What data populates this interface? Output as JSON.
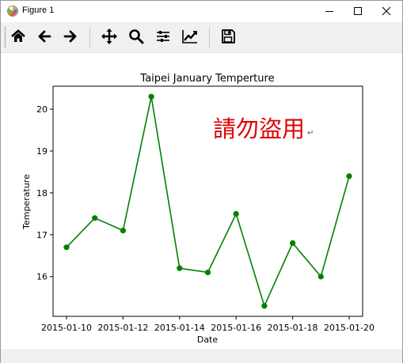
{
  "window": {
    "title": "Figure 1",
    "controls": [
      "minimize",
      "maximize",
      "close"
    ]
  },
  "toolbar": {
    "tools": [
      {
        "name": "home-icon",
        "tip": "Reset original view"
      },
      {
        "name": "back-arrow-icon",
        "tip": "Back"
      },
      {
        "name": "forward-arrow-icon",
        "tip": "Forward"
      },
      {
        "name": "pan-icon",
        "tip": "Pan"
      },
      {
        "name": "zoom-icon",
        "tip": "Zoom"
      },
      {
        "name": "subplots-icon",
        "tip": "Configure subplots"
      },
      {
        "name": "edit-curve-icon",
        "tip": "Edit axis, curve and image parameters"
      },
      {
        "name": "save-icon",
        "tip": "Save the figure"
      }
    ]
  },
  "watermark": "請勿盜用",
  "watermark_mark": "↵",
  "chart_data": {
    "type": "line",
    "title": "Taipei January Temperture",
    "xlabel": "Date",
    "ylabel": "Temperature",
    "x": [
      "2015-01-10",
      "2015-01-11",
      "2015-01-12",
      "2015-01-13",
      "2015-01-14",
      "2015-01-15",
      "2015-01-16",
      "2015-01-17",
      "2015-01-18",
      "2015-01-19",
      "2015-01-20"
    ],
    "series": [
      {
        "values": [
          16.7,
          17.4,
          17.1,
          20.3,
          16.2,
          16.1,
          17.5,
          15.3,
          16.8,
          16.0,
          18.4
        ]
      }
    ],
    "xticks": [
      "2015-01-10",
      "2015-01-12",
      "2015-01-14",
      "2015-01-16",
      "2015-01-18",
      "2015-01-20"
    ],
    "yticks": [
      16,
      17,
      18,
      19,
      20
    ],
    "ylim": [
      15.05,
      20.55
    ],
    "color": "#008000",
    "grid": false,
    "marker": "circle"
  }
}
